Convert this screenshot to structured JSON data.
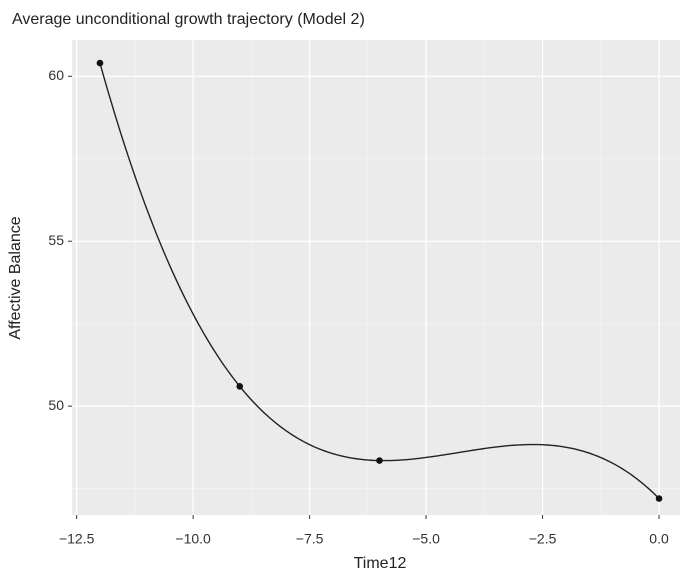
{
  "chart_data": {
    "type": "scatter",
    "title": "Average unconditional growth trajectory (Model 2)",
    "xlabel": "Time12",
    "ylabel": "Affective Balance",
    "x": [
      -12,
      -9,
      -6,
      0
    ],
    "values": [
      60.4,
      50.6,
      48.35,
      47.2
    ],
    "color": "#111111",
    "xlim": [
      -12.6,
      0.45
    ],
    "ylim": [
      46.7,
      61.1
    ],
    "xticks": [
      {
        "value": -12.5,
        "label": "−12.5"
      },
      {
        "value": -10,
        "label": "−10.0"
      },
      {
        "value": -7.5,
        "label": "−7.5"
      },
      {
        "value": -5,
        "label": "−5.0"
      },
      {
        "value": -2.5,
        "label": "−2.5"
      },
      {
        "value": 0,
        "label": "0.0"
      }
    ],
    "yticks": [
      50,
      55,
      60
    ],
    "grid": true
  }
}
